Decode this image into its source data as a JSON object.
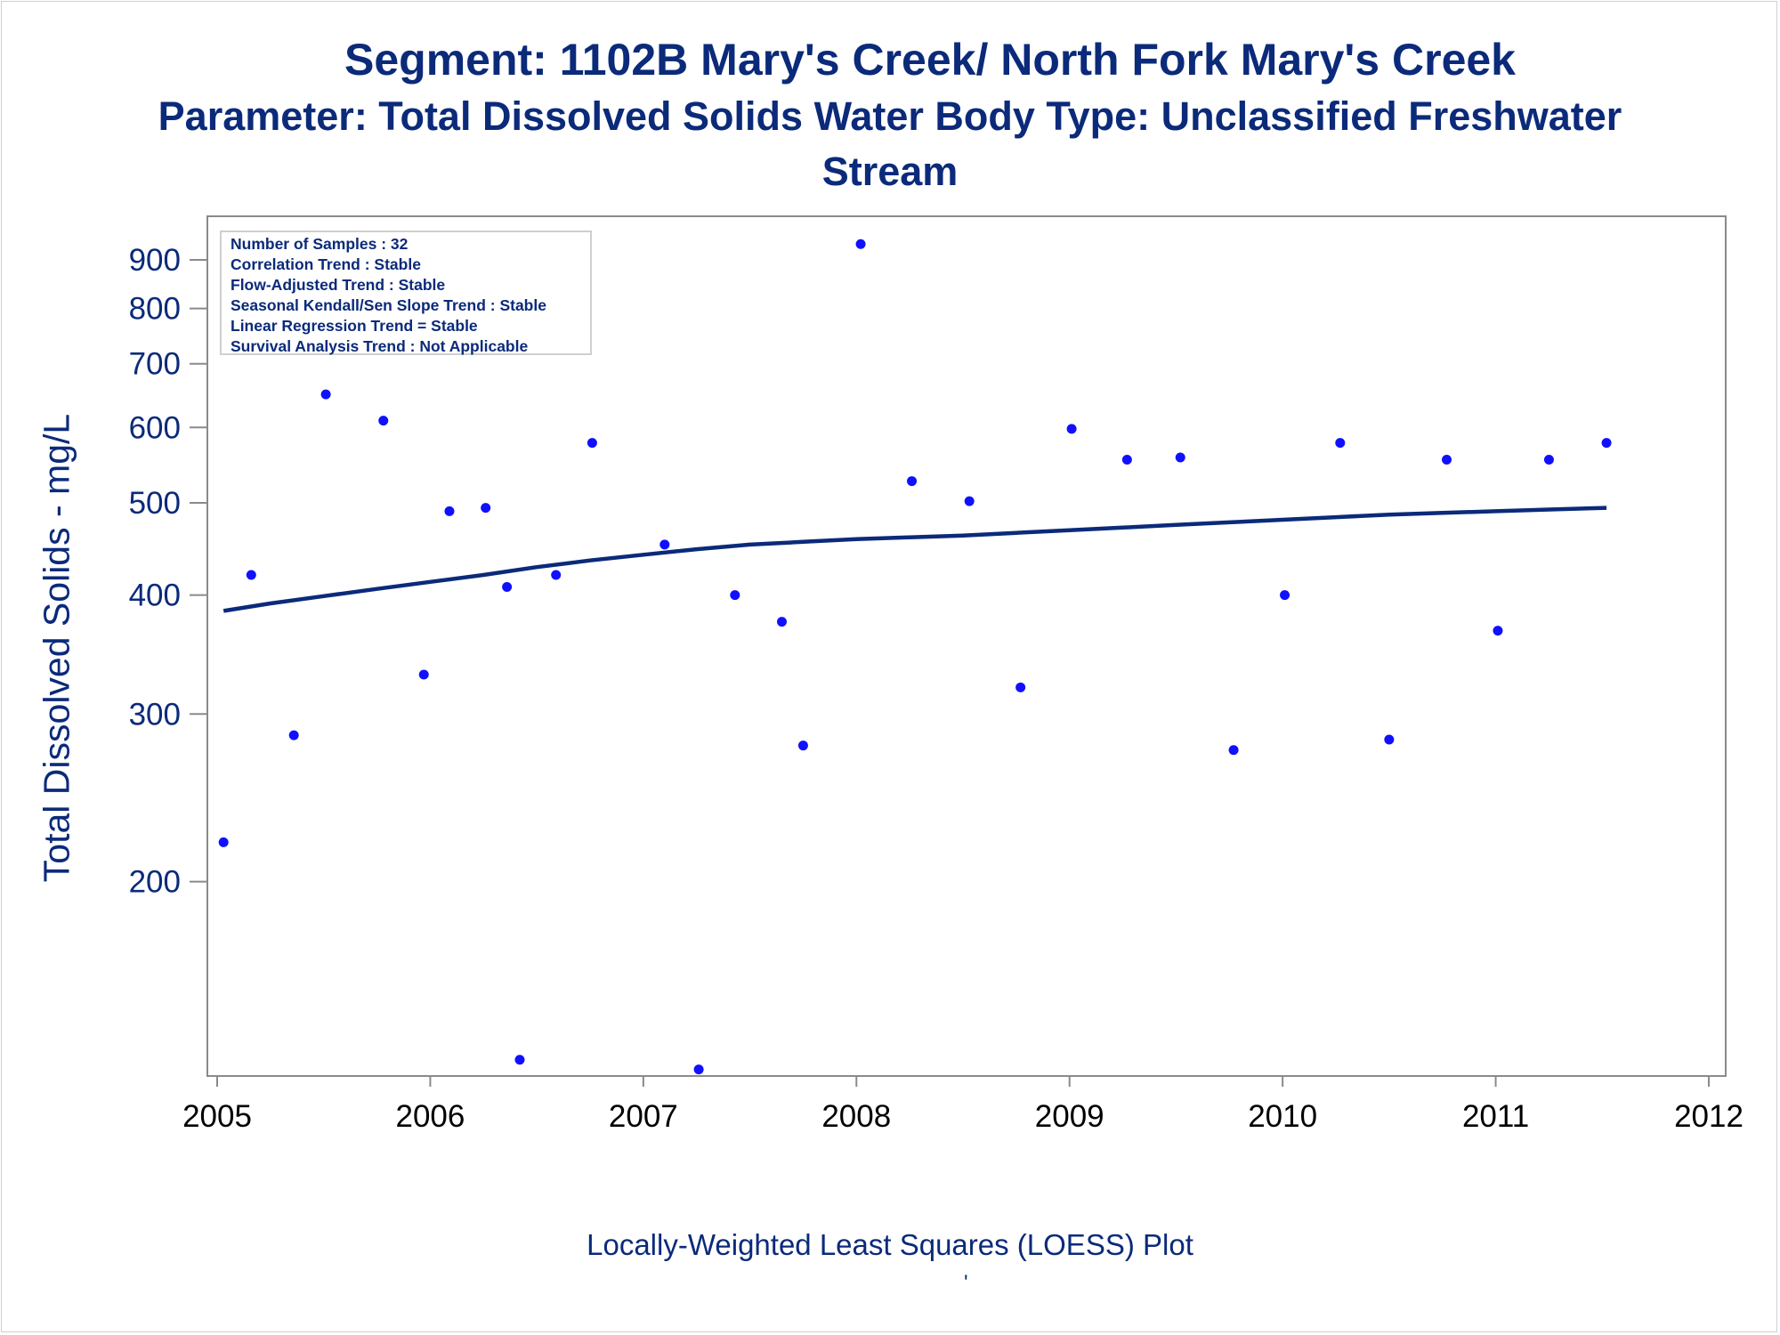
{
  "titles": {
    "line1": "Segment: 1102B  Mary's Creek/ North Fork Mary's Creek",
    "line2": "Parameter: Total Dissolved Solids   Water Body Type: Unclassified Freshwater",
    "line3": "Stream"
  },
  "stats": {
    "samples": "Number of Samples : 32",
    "correlation": "Correlation Trend : Stable",
    "flow_adjusted": "Flow-Adjusted Trend : Stable",
    "seasonal_kendall": "Seasonal Kendall/Sen Slope Trend : Stable",
    "linear_regression": "Linear Regression Trend = Stable",
    "survival": "Survival Analysis Trend : Not Applicable"
  },
  "footnote": "Locally-Weighted Least Squares (LOESS) Plot",
  "footnote_mark": "'",
  "colors": {
    "text": "#0b2a7a",
    "points": "#1010ff",
    "line": "#0b2a7a",
    "axis": "#8a8a8a"
  },
  "chart_data": {
    "type": "scatter",
    "ylabel": "Total Dissolved Solids - mg/L",
    "xlabel": "",
    "y_scale": "log",
    "xlim": [
      2005,
      2012
    ],
    "ylim": [
      125,
      1000
    ],
    "x_ticks": [
      "2005",
      "2006",
      "2007",
      "2008",
      "2009",
      "2010",
      "2011",
      "2012"
    ],
    "y_ticks": [
      200,
      300,
      400,
      500,
      600,
      700,
      800,
      900
    ],
    "grid": false,
    "series": [
      {
        "kind": "points",
        "x": [
          2005.03,
          2005.16,
          2005.36,
          2005.51,
          2005.78,
          2005.97,
          2006.09,
          2006.26,
          2006.36,
          2006.42,
          2006.59,
          2006.76,
          2007.1,
          2007.26,
          2007.43,
          2007.65,
          2007.75,
          2008.02,
          2008.26,
          2008.53,
          2008.77,
          2009.01,
          2009.27,
          2009.52,
          2009.77,
          2010.01,
          2010.27,
          2010.5,
          2010.77,
          2011.01,
          2011.25,
          2011.52
        ],
        "y": [
          220,
          420,
          285,
          650,
          610,
          330,
          490,
          494,
          408,
          130,
          420,
          578,
          452,
          127,
          400,
          375,
          278,
          935,
          527,
          502,
          320,
          598,
          555,
          558,
          275,
          400,
          578,
          282,
          555,
          367,
          555,
          578
        ]
      },
      {
        "kind": "loess",
        "x": [
          2005.03,
          2005.25,
          2005.5,
          2005.75,
          2006.0,
          2006.25,
          2006.5,
          2006.75,
          2007.0,
          2007.25,
          2007.5,
          2007.75,
          2008.0,
          2008.25,
          2008.5,
          2008.75,
          2009.0,
          2009.25,
          2009.5,
          2009.75,
          2010.0,
          2010.25,
          2010.5,
          2010.75,
          2011.0,
          2011.25,
          2011.52
        ],
        "y": [
          385,
          392,
          399,
          406,
          413,
          420,
          428,
          435,
          441,
          447,
          452,
          455,
          458,
          460,
          462,
          465,
          468,
          471,
          474,
          477,
          480,
          483,
          486,
          488,
          490,
          492,
          494
        ]
      }
    ]
  }
}
